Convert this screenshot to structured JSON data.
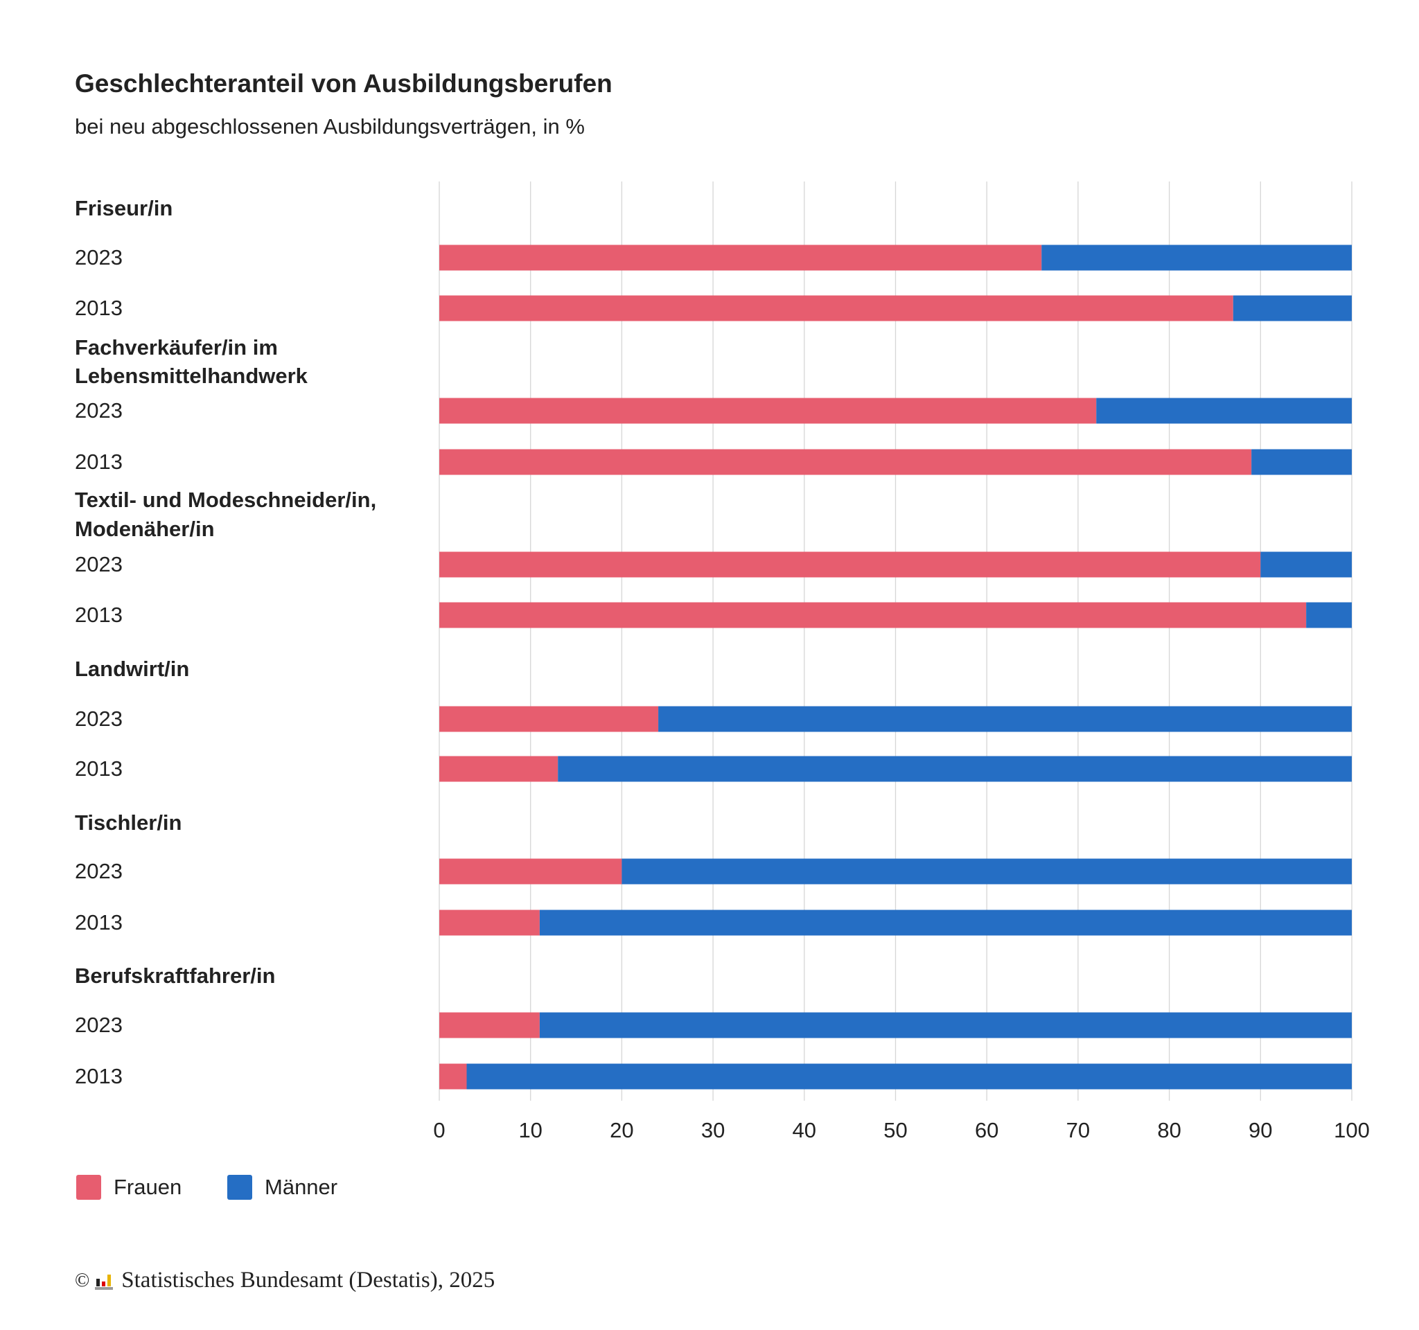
{
  "chart_data": {
    "type": "bar",
    "orientation": "horizontal",
    "stacked": true,
    "title": "Geschlechteranteil von Ausbildungsberufen",
    "subtitle": "bei neu abgeschlossenen Ausbildungsverträgen, in %",
    "groups": [
      {
        "label": "Friseur/in",
        "rows": [
          {
            "year": "2023",
            "frauen": 66,
            "maenner": 34
          },
          {
            "year": "2013",
            "frauen": 87,
            "maenner": 13
          }
        ]
      },
      {
        "label": "Fachverkäufer/in im Lebensmittelhandwerk",
        "label_lines": [
          "Fachverkäufer/in im",
          "Lebensmittelhandwerk"
        ],
        "rows": [
          {
            "year": "2023",
            "frauen": 72,
            "maenner": 28
          },
          {
            "year": "2013",
            "frauen": 89,
            "maenner": 11
          }
        ]
      },
      {
        "label": "Textil- und Modeschneider/in, Modenäher/in",
        "label_lines": [
          "Textil- und Modeschneider/in,",
          "Modenäher/in"
        ],
        "rows": [
          {
            "year": "2023",
            "frauen": 90,
            "maenner": 10
          },
          {
            "year": "2013",
            "frauen": 95,
            "maenner": 5
          }
        ]
      },
      {
        "label": "Landwirt/in",
        "rows": [
          {
            "year": "2023",
            "frauen": 24,
            "maenner": 76
          },
          {
            "year": "2013",
            "frauen": 13,
            "maenner": 87
          }
        ]
      },
      {
        "label": "Tischler/in",
        "rows": [
          {
            "year": "2023",
            "frauen": 20,
            "maenner": 80
          },
          {
            "year": "2013",
            "frauen": 11,
            "maenner": 89
          }
        ]
      },
      {
        "label": "Berufskraftfahrer/in",
        "rows": [
          {
            "year": "2023",
            "frauen": 11,
            "maenner": 89
          },
          {
            "year": "2013",
            "frauen": 3,
            "maenner": 97
          }
        ]
      }
    ],
    "series": [
      {
        "name": "Frauen",
        "color": "#e75d6f"
      },
      {
        "name": "Männer",
        "color": "#256ec4"
      }
    ],
    "xlim": [
      0,
      100
    ],
    "xticks": [
      "0",
      "10",
      "20",
      "30",
      "40",
      "50",
      "60",
      "70",
      "80",
      "90",
      "100"
    ],
    "grid": true,
    "legend_position": "bottom-left"
  },
  "footer": {
    "text": "Statistisches Bundesamt (Destatis), 2025",
    "copyright": "©"
  }
}
